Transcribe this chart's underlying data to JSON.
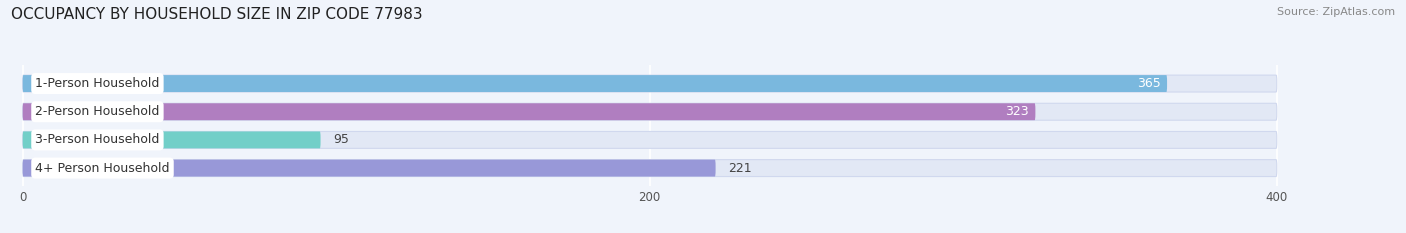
{
  "title": "OCCUPANCY BY HOUSEHOLD SIZE IN ZIP CODE 77983",
  "source": "Source: ZipAtlas.com",
  "categories": [
    "1-Person Household",
    "2-Person Household",
    "3-Person Household",
    "4+ Person Household"
  ],
  "values": [
    365,
    323,
    95,
    221
  ],
  "bar_colors": [
    "#7ab8de",
    "#b07ec0",
    "#72cfc8",
    "#9898d8"
  ],
  "label_colors": [
    "white",
    "white",
    "#555555",
    "#555555"
  ],
  "xlim": [
    0,
    400
  ],
  "xticks": [
    0,
    200,
    400
  ],
  "background_color": "#f0f4fb",
  "bar_bg_color": "#e2e8f5",
  "title_fontsize": 11,
  "source_fontsize": 8,
  "label_fontsize": 9,
  "value_fontsize": 9
}
